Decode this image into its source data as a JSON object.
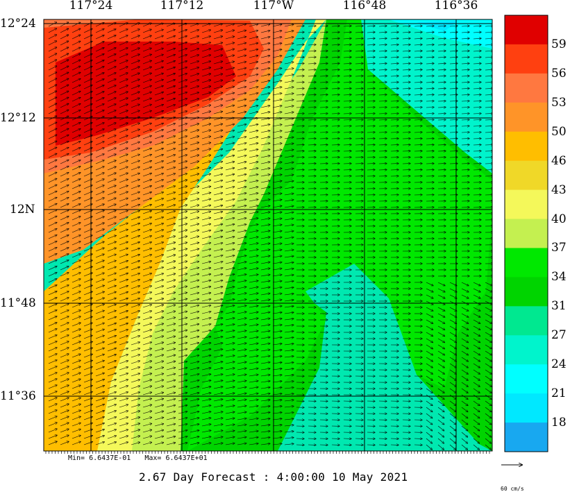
{
  "map": {
    "lon_labels": [
      "117°24",
      "117°12",
      "117°W",
      "116°48",
      "116°36"
    ],
    "lat_labels": [
      "12°24",
      "12°12",
      "12N",
      "11°48",
      "11°36"
    ],
    "colorbar_labels": [
      "59",
      "56",
      "53",
      "50",
      "46",
      "43",
      "40",
      "37",
      "34",
      "31",
      "27",
      "24",
      "21",
      "18"
    ],
    "colorbar_colors": [
      "#e00000",
      "#ff4010",
      "#ff7840",
      "#ff9428",
      "#ffbe00",
      "#f0d828",
      "#f4f85a",
      "#c4f050",
      "#00e800",
      "#00d400",
      "#00e890",
      "#00f4cc",
      "#00ffff",
      "#00e8ff",
      "#18a8f0"
    ],
    "min_label": "Min= 6.6437E-01",
    "max_label": "Max= 6.6437E+01",
    "forecast": "2.67 Day Forecast :  4:00:00  10 May 2021",
    "reference_unit": "60 cm/s"
  }
}
